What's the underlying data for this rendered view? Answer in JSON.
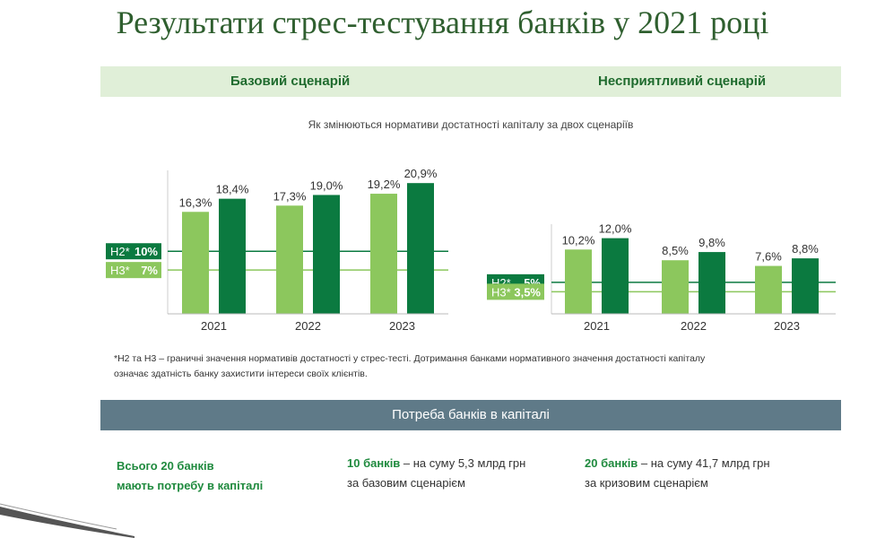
{
  "title": "Результати стрес-тестування банків у 2021 році",
  "scenarios": {
    "base_label": "Базовий сценарій",
    "adverse_label": "Несприятливий сценарій"
  },
  "subtitle": "Як змінюються нормативи достатності капіталу за двох сценаріїв",
  "colors": {
    "light_green": "#8cc75d",
    "dark_green": "#0b7a40",
    "header_bg": "#e0efd8",
    "need_bg": "#5f7a88"
  },
  "chart_data": [
    {
      "type": "bar",
      "title": "Базовий сценарій",
      "categories": [
        "2021",
        "2022",
        "2023"
      ],
      "series": [
        {
          "name": "Н3",
          "values": [
            16.3,
            17.3,
            19.2
          ],
          "labels": [
            "16,3%",
            "17,3%",
            "19,2%"
          ]
        },
        {
          "name": "Н2",
          "values": [
            18.4,
            19.0,
            20.9
          ],
          "labels": [
            "18,4%",
            "19,0%",
            "20,9%"
          ]
        }
      ],
      "thresholds": [
        {
          "name": "Н2",
          "value": 10,
          "label_name": "Н2*",
          "label_value": "10%"
        },
        {
          "name": "Н3",
          "value": 7,
          "label_name": "Н3*",
          "label_value": "7%"
        }
      ],
      "ylim": [
        0,
        21.5
      ]
    },
    {
      "type": "bar",
      "title": "Несприятливий сценарій",
      "categories": [
        "2021",
        "2022",
        "2023"
      ],
      "series": [
        {
          "name": "Н3",
          "values": [
            10.2,
            8.5,
            7.6
          ],
          "labels": [
            "10,2%",
            "8,5%",
            "7,6%"
          ]
        },
        {
          "name": "Н2",
          "values": [
            12.0,
            9.8,
            8.8
          ],
          "labels": [
            "12,0%",
            "9,8%",
            "8,8%"
          ]
        }
      ],
      "thresholds": [
        {
          "name": "Н2",
          "value": 5,
          "label_name": "Н2*",
          "label_value": "5%"
        },
        {
          "name": "Н3",
          "value": 3.5,
          "label_name": "Н3*",
          "label_value": "3,5%"
        }
      ],
      "ylim": [
        0,
        12.8
      ]
    }
  ],
  "footnote": {
    "line1": "*Н2 та Н3 – граничні значення нормативів достатності у стрес-тесті. Дотримання банками нормативного значення достатності капіталу",
    "line2": "означає здатність банку захистити інтереси своїх клієнтів."
  },
  "capital_need": {
    "title": "Потреба банків в капіталі",
    "total_line1": "Всього 20 банків",
    "total_line2": "мають потребу в капіталі",
    "base_count": "10 банків",
    "base_text": " – на суму 5,3 млрд грн",
    "base_text2": "за базовим сценарієм",
    "crisis_count": "20 банків",
    "crisis_text": " – на суму 41,7 млрд грн",
    "crisis_text2": "за кризовим сценарієм"
  }
}
